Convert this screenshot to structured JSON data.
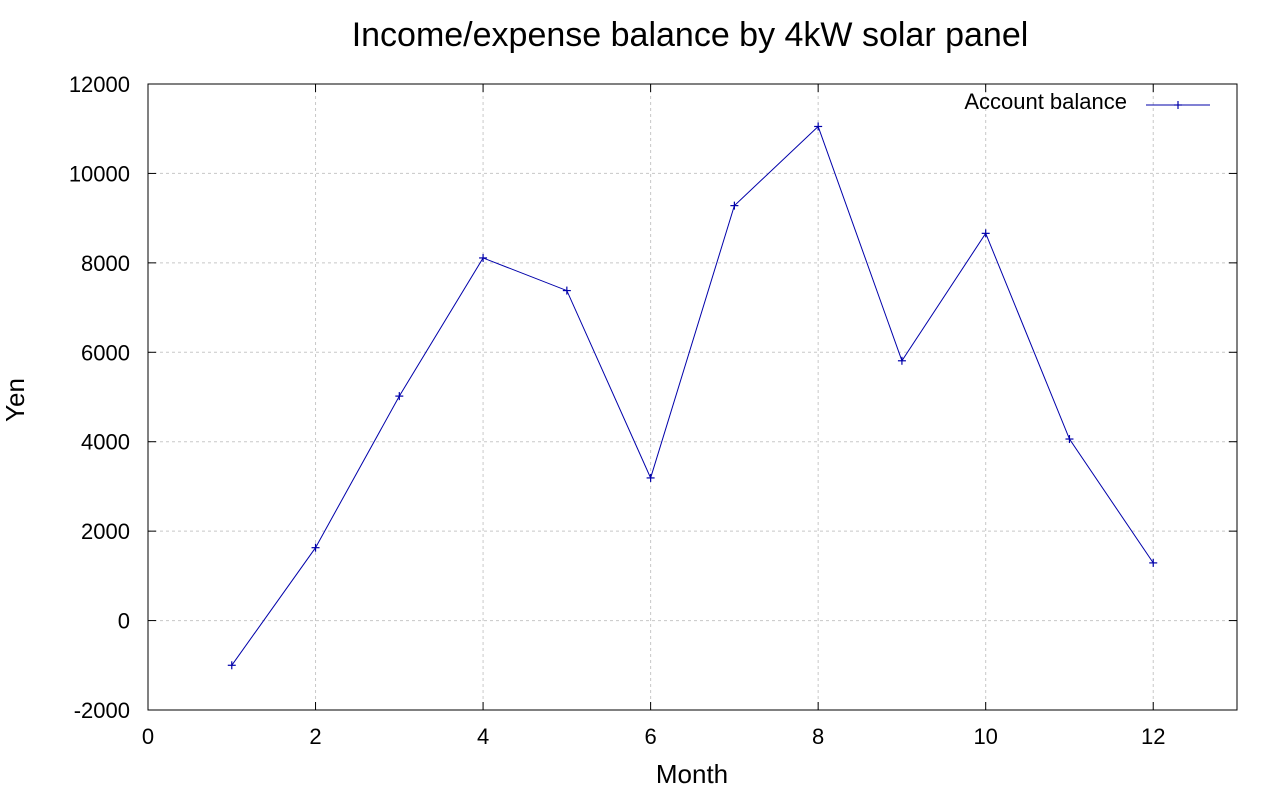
{
  "chart_data": {
    "type": "line",
    "title": "Income/expense balance by 4kW solar panel",
    "xlabel": "Month",
    "ylabel": "Yen",
    "xlim": [
      0,
      13
    ],
    "ylim": [
      -2000,
      12000
    ],
    "xticks": [
      0,
      2,
      4,
      6,
      8,
      10,
      12
    ],
    "yticks": [
      -2000,
      0,
      2000,
      4000,
      6000,
      8000,
      10000,
      12000
    ],
    "grid": true,
    "legend_position": "top-right",
    "series": [
      {
        "name": "Account balance",
        "color": "#0000aa",
        "marker": "plus",
        "x": [
          1,
          2,
          3,
          4,
          5,
          6,
          7,
          8,
          9,
          10,
          11,
          12
        ],
        "y": [
          -1000,
          1630,
          5020,
          8110,
          7380,
          3190,
          9280,
          11050,
          5810,
          8660,
          4060,
          1290
        ]
      }
    ]
  }
}
